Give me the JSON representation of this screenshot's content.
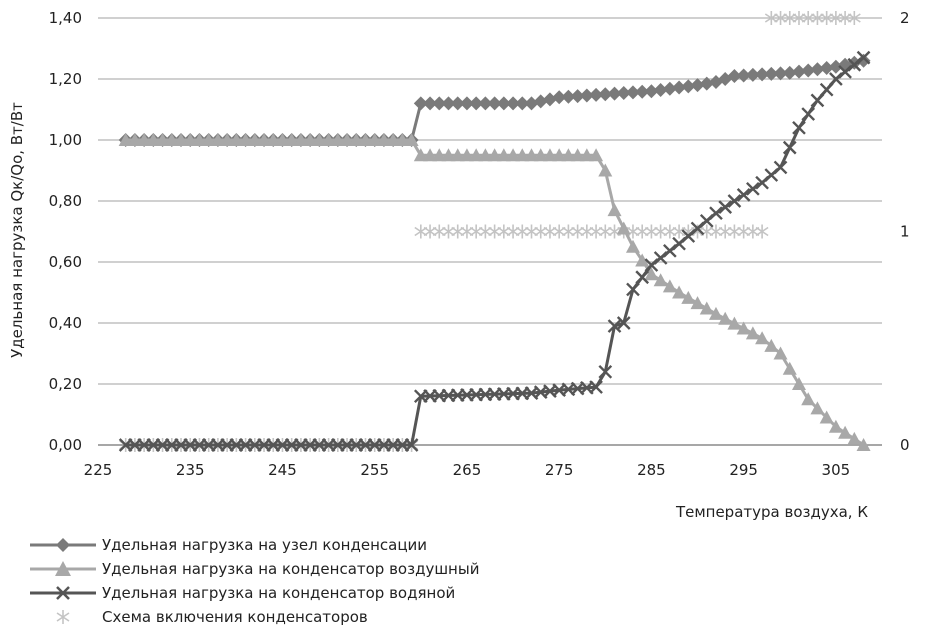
{
  "chart_data": {
    "type": "line",
    "xlabel": "Температура воздуха, К",
    "ylabel": "Удельная нагрузка Qк/Qо, Вт/Вт",
    "xlim": [
      225,
      310
    ],
    "ylim": [
      0,
      1.4
    ],
    "y2lim": [
      0,
      2
    ],
    "x_ticks": [
      "225",
      "235",
      "245",
      "255",
      "265",
      "275",
      "285",
      "295",
      "305"
    ],
    "y_ticks": [
      "0,00",
      "0,20",
      "0,40",
      "0,60",
      "0,80",
      "1,00",
      "1,20",
      "1,40"
    ],
    "y2_ticks": [
      "0",
      "1",
      "2"
    ],
    "grid": "horizontal",
    "legend_position": "bottom-left",
    "series": [
      {
        "name": "Удельная нагрузка на узел конденсации",
        "marker": "diamond",
        "color": "#7a7a7a",
        "axis": "left",
        "points": [
          [
            228,
            1.0
          ],
          [
            259,
            1.0
          ],
          [
            260,
            1.12
          ],
          [
            265,
            1.12
          ],
          [
            272,
            1.12
          ],
          [
            275,
            1.14
          ],
          [
            280,
            1.15
          ],
          [
            285,
            1.16
          ],
          [
            290,
            1.18
          ],
          [
            292,
            1.19
          ],
          [
            294,
            1.21
          ],
          [
            300,
            1.22
          ],
          [
            305,
            1.24
          ],
          [
            308,
            1.26
          ]
        ]
      },
      {
        "name": "Удельная нагрузка на конденсатор воздушный",
        "marker": "triangle",
        "color": "#a8a8a8",
        "axis": "left",
        "points": [
          [
            228,
            1.0
          ],
          [
            259,
            1.0
          ],
          [
            260,
            0.95
          ],
          [
            279,
            0.95
          ],
          [
            280,
            0.9
          ],
          [
            281,
            0.77
          ],
          [
            283,
            0.65
          ],
          [
            285,
            0.56
          ],
          [
            288,
            0.5
          ],
          [
            292,
            0.43
          ],
          [
            297,
            0.35
          ],
          [
            299,
            0.3
          ],
          [
            302,
            0.15
          ],
          [
            305,
            0.06
          ],
          [
            308,
            0.0
          ]
        ]
      },
      {
        "name": "Удельная нагрузка на конденсатор водяной",
        "marker": "x",
        "color": "#555555",
        "axis": "left",
        "points": [
          [
            228,
            0.0
          ],
          [
            259,
            0.0
          ],
          [
            260,
            0.16
          ],
          [
            272,
            0.17
          ],
          [
            275,
            0.18
          ],
          [
            279,
            0.19
          ],
          [
            280,
            0.24
          ],
          [
            281,
            0.39
          ],
          [
            282,
            0.4
          ],
          [
            283,
            0.51
          ],
          [
            285,
            0.59
          ],
          [
            288,
            0.66
          ],
          [
            292,
            0.76
          ],
          [
            294,
            0.8
          ],
          [
            297,
            0.86
          ],
          [
            299,
            0.91
          ],
          [
            301,
            1.04
          ],
          [
            303,
            1.13
          ],
          [
            305,
            1.2
          ],
          [
            308,
            1.27
          ]
        ]
      },
      {
        "name": "Схема включения конденсаторов",
        "marker": "asterisk",
        "color": "#c4c4c4",
        "axis": "right",
        "line": false,
        "points": [
          [
            228,
            0
          ],
          [
            259,
            0
          ],
          [
            260,
            1
          ],
          [
            297,
            1
          ],
          [
            298,
            2
          ],
          [
            307,
            2
          ]
        ]
      }
    ]
  }
}
